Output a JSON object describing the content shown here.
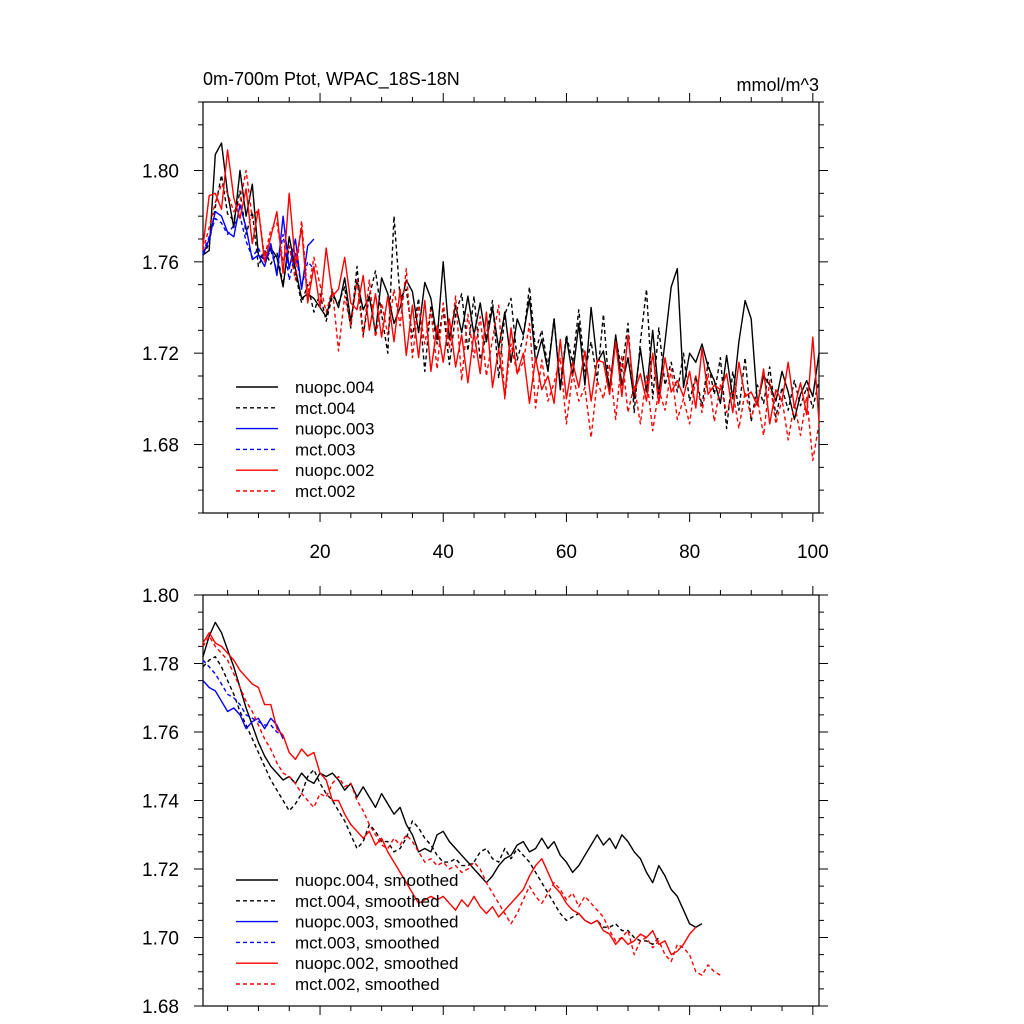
{
  "figure": {
    "title_left": "0m-700m Ptot, WPAC_18S-18N",
    "title_right": "mmol/m^3"
  },
  "chart_data": [
    {
      "type": "line",
      "title": "0m-700m Ptot, WPAC_18S-18N",
      "units": "mmol/m^3",
      "xlim": [
        1,
        101
      ],
      "ylim": [
        1.65,
        1.83
      ],
      "xticks": [
        20,
        40,
        60,
        80,
        100
      ],
      "xtick_labels": [
        "20",
        "40",
        "60",
        "80",
        "100"
      ],
      "yticks": [
        1.68,
        1.72,
        1.76,
        1.8
      ],
      "ytick_labels": [
        "1.68",
        "1.72",
        "1.76",
        "1.80"
      ],
      "legend": [
        "nuopc.004",
        "mct.004",
        "nuopc.003",
        "mct.003",
        "nuopc.002",
        "mct.002"
      ],
      "legend_location": "lower-left",
      "series": [
        {
          "name": "nuopc.004",
          "color": "#000000",
          "dash": "solid",
          "x_start": 1,
          "values": [
            1.763,
            1.765,
            1.807,
            1.812,
            1.79,
            1.775,
            1.8,
            1.78,
            1.794,
            1.763,
            1.761,
            1.766,
            1.762,
            1.749,
            1.771,
            1.757,
            1.744,
            1.746,
            1.744,
            1.74,
            1.736,
            1.747,
            1.74,
            1.753,
            1.734,
            1.752,
            1.739,
            1.745,
            1.729,
            1.753,
            1.746,
            1.733,
            1.74,
            1.752,
            1.747,
            1.729,
            1.751,
            1.744,
            1.726,
            1.76,
            1.726,
            1.741,
            1.729,
            1.745,
            1.728,
            1.742,
            1.725,
            1.74,
            1.722,
            1.738,
            1.716,
            1.735,
            1.728,
            1.744,
            1.716,
            1.726,
            1.712,
            1.735,
            1.704,
            1.727,
            1.71,
            1.733,
            1.706,
            1.74,
            1.716,
            1.721,
            1.704,
            1.728,
            1.706,
            1.718,
            1.7,
            1.722,
            1.703,
            1.73,
            1.702,
            1.725,
            1.749,
            1.757,
            1.705,
            1.72,
            1.716,
            1.724,
            1.714,
            1.708,
            1.698,
            1.719,
            1.7,
            1.725,
            1.743,
            1.735,
            1.698,
            1.71,
            1.706,
            1.699,
            1.712,
            1.703,
            1.691,
            1.702,
            1.708,
            1.701,
            1.72
          ]
        },
        {
          "name": "mct.004",
          "color": "#000000",
          "dash": "dashed",
          "x_start": 1,
          "values": [
            1.763,
            1.768,
            1.784,
            1.798,
            1.781,
            1.778,
            1.791,
            1.772,
            1.782,
            1.758,
            1.765,
            1.759,
            1.764,
            1.75,
            1.767,
            1.755,
            1.742,
            1.75,
            1.738,
            1.746,
            1.734,
            1.745,
            1.742,
            1.749,
            1.731,
            1.758,
            1.728,
            1.745,
            1.756,
            1.737,
            1.72,
            1.78,
            1.744,
            1.748,
            1.727,
            1.744,
            1.712,
            1.741,
            1.724,
            1.739,
            1.715,
            1.737,
            1.746,
            1.721,
            1.745,
            1.717,
            1.728,
            1.743,
            1.709,
            1.737,
            1.744,
            1.717,
            1.727,
            1.749,
            1.721,
            1.73,
            1.714,
            1.735,
            1.706,
            1.728,
            1.716,
            1.739,
            1.712,
            1.725,
            1.708,
            1.737,
            1.702,
            1.727,
            1.712,
            1.733,
            1.694,
            1.725,
            1.748,
            1.7,
            1.731,
            1.706,
            1.716,
            1.703,
            1.72,
            1.699,
            1.71,
            1.697,
            1.716,
            1.702,
            1.718,
            1.687,
            1.712,
            1.695,
            1.718,
            1.69,
            1.706,
            1.698,
            1.714,
            1.692,
            1.705,
            1.695,
            1.708,
            1.697,
            1.705,
            1.696,
            1.708
          ]
        },
        {
          "name": "nuopc.003",
          "color": "#0000ff",
          "dash": "solid",
          "x_start": 1,
          "values": [
            1.763,
            1.77,
            1.782,
            1.78,
            1.773,
            1.771,
            1.785,
            1.775,
            1.761,
            1.763,
            1.758,
            1.768,
            1.754,
            1.78,
            1.757,
            1.77,
            1.748,
            1.767,
            1.77
          ]
        },
        {
          "name": "mct.003",
          "color": "#0000ff",
          "dash": "dashed",
          "x_start": 1,
          "values": [
            1.764,
            1.771,
            1.779,
            1.777,
            1.772,
            1.776,
            1.78,
            1.769,
            1.762,
            1.766,
            1.76,
            1.765,
            1.756,
            1.772,
            1.752,
            1.764,
            1.749,
            1.76,
            1.757
          ]
        },
        {
          "name": "nuopc.002",
          "color": "#ff0000",
          "dash": "solid",
          "x_start": 1,
          "values": [
            1.767,
            1.789,
            1.79,
            1.783,
            1.809,
            1.788,
            1.779,
            1.792,
            1.768,
            1.783,
            1.76,
            1.771,
            1.782,
            1.755,
            1.79,
            1.759,
            1.775,
            1.742,
            1.758,
            1.74,
            1.766,
            1.745,
            1.748,
            1.762,
            1.742,
            1.739,
            1.754,
            1.73,
            1.746,
            1.727,
            1.745,
            1.725,
            1.748,
            1.719,
            1.741,
            1.718,
            1.743,
            1.712,
            1.732,
            1.716,
            1.735,
            1.714,
            1.728,
            1.707,
            1.729,
            1.711,
            1.738,
            1.705,
            1.722,
            1.701,
            1.731,
            1.711,
            1.72,
            1.698,
            1.718,
            1.704,
            1.71,
            1.698,
            1.726,
            1.7,
            1.716,
            1.705,
            1.721,
            1.699,
            1.717,
            1.716,
            1.702,
            1.725,
            1.701,
            1.728,
            1.703,
            1.711,
            1.699,
            1.72,
            1.698,
            1.718,
            1.703,
            1.708,
            1.701,
            1.712,
            1.696,
            1.722,
            1.702,
            1.706,
            1.704,
            1.711,
            1.694,
            1.716,
            1.701,
            1.703,
            1.697,
            1.713,
            1.689,
            1.704,
            1.699,
            1.716,
            1.696,
            1.707,
            1.693,
            1.727,
            1.69
          ]
        },
        {
          "name": "mct.002",
          "color": "#ff0000",
          "dash": "dashed",
          "x_start": 1,
          "values": [
            1.765,
            1.775,
            1.786,
            1.794,
            1.79,
            1.782,
            1.786,
            1.8,
            1.779,
            1.783,
            1.762,
            1.774,
            1.777,
            1.76,
            1.767,
            1.752,
            1.778,
            1.745,
            1.762,
            1.75,
            1.738,
            1.748,
            1.721,
            1.745,
            1.732,
            1.752,
            1.727,
            1.752,
            1.727,
            1.742,
            1.728,
            1.748,
            1.732,
            1.757,
            1.718,
            1.741,
            1.724,
            1.739,
            1.713,
            1.742,
            1.722,
            1.745,
            1.708,
            1.737,
            1.718,
            1.736,
            1.71,
            1.726,
            1.741,
            1.7,
            1.724,
            1.711,
            1.716,
            1.733,
            1.696,
            1.717,
            1.699,
            1.707,
            1.718,
            1.689,
            1.711,
            1.699,
            1.705,
            1.683,
            1.708,
            1.7,
            1.715,
            1.691,
            1.719,
            1.694,
            1.706,
            1.689,
            1.71,
            1.686,
            1.704,
            1.695,
            1.713,
            1.691,
            1.7,
            1.689,
            1.71,
            1.694,
            1.711,
            1.69,
            1.706,
            1.694,
            1.703,
            1.687,
            1.703,
            1.692,
            1.7,
            1.684,
            1.708,
            1.689,
            1.7,
            1.682,
            1.698,
            1.684,
            1.701,
            1.673,
            1.689
          ]
        }
      ]
    },
    {
      "type": "line",
      "title": "",
      "xlim": [
        1,
        101
      ],
      "ylim": [
        1.68,
        1.8
      ],
      "xticks": [
        20,
        40,
        60,
        80,
        100
      ],
      "xtick_labels": [],
      "yticks": [
        1.68,
        1.7,
        1.72,
        1.74,
        1.76,
        1.78,
        1.8
      ],
      "ytick_labels": [
        "1.68",
        "1.70",
        "1.72",
        "1.74",
        "1.76",
        "1.78",
        "1.80"
      ],
      "legend": [
        "nuopc.004, smoothed",
        "mct.004, smoothed",
        "nuopc.003, smoothed",
        "mct.003, smoothed",
        "nuopc.002, smoothed",
        "mct.002, smoothed"
      ],
      "legend_location": "lower-left",
      "series": [
        {
          "name": "nuopc.004, smoothed",
          "color": "#000000",
          "dash": "solid",
          "x_start": 1,
          "values": [
            1.782,
            1.788,
            1.792,
            1.789,
            1.784,
            1.779,
            1.773,
            1.767,
            1.762,
            1.757,
            1.753,
            1.75,
            1.748,
            1.746,
            1.747,
            1.745,
            1.748,
            1.746,
            1.745,
            1.748,
            1.747,
            1.748,
            1.746,
            1.743,
            1.745,
            1.741,
            1.744,
            1.741,
            1.738,
            1.742,
            1.739,
            1.736,
            1.738,
            1.733,
            1.73,
            1.725,
            1.726,
            1.725,
            1.73,
            1.731,
            1.728,
            1.726,
            1.724,
            1.722,
            1.72,
            1.718,
            1.716,
            1.718,
            1.721,
            1.723,
            1.724,
            1.727,
            1.728,
            1.725,
            1.726,
            1.729,
            1.726,
            1.728,
            1.724,
            1.722,
            1.719,
            1.721,
            1.724,
            1.727,
            1.73,
            1.727,
            1.729,
            1.726,
            1.73,
            1.728,
            1.725,
            1.723,
            1.719,
            1.716,
            1.721,
            1.718,
            1.714,
            1.712,
            1.708,
            1.704,
            1.703,
            1.704
          ]
        },
        {
          "name": "mct.004, smoothed",
          "color": "#000000",
          "dash": "dashed",
          "x_start": 1,
          "values": [
            1.779,
            1.781,
            1.782,
            1.779,
            1.775,
            1.771,
            1.766,
            1.762,
            1.758,
            1.754,
            1.75,
            1.746,
            1.743,
            1.74,
            1.737,
            1.739,
            1.742,
            1.747,
            1.749,
            1.745,
            1.742,
            1.74,
            1.737,
            1.734,
            1.73,
            1.726,
            1.728,
            1.733,
            1.731,
            1.728,
            1.728,
            1.725,
            1.726,
            1.729,
            1.734,
            1.732,
            1.729,
            1.727,
            1.724,
            1.722,
            1.722,
            1.723,
            1.721,
            1.721,
            1.722,
            1.725,
            1.726,
            1.723,
            1.722,
            1.726,
            1.723,
            1.726,
            1.724,
            1.722,
            1.719,
            1.716,
            1.713,
            1.71,
            1.707,
            1.705,
            1.706,
            1.707,
            1.705,
            1.704,
            1.705,
            1.703,
            1.703,
            1.704,
            1.702,
            1.702,
            1.7,
            1.699,
            1.699,
            1.698,
            1.7
          ]
        },
        {
          "name": "nuopc.003, smoothed",
          "color": "#0000ff",
          "dash": "solid",
          "x_start": 1,
          "values": [
            1.775,
            1.773,
            1.772,
            1.769,
            1.766,
            1.767,
            1.765,
            1.761,
            1.763,
            1.764,
            1.761,
            1.764,
            1.762,
            1.758
          ]
        },
        {
          "name": "mct.003, smoothed",
          "color": "#0000ff",
          "dash": "dashed",
          "x_start": 1,
          "values": [
            1.781,
            1.779,
            1.777,
            1.774,
            1.771,
            1.77,
            1.768,
            1.765,
            1.764,
            1.763,
            1.762,
            1.762,
            1.76,
            1.759
          ]
        },
        {
          "name": "nuopc.002, smoothed",
          "color": "#ff0000",
          "dash": "solid",
          "x_start": 1,
          "values": [
            1.786,
            1.789,
            1.786,
            1.785,
            1.783,
            1.781,
            1.778,
            1.776,
            1.774,
            1.773,
            1.768,
            1.768,
            1.761,
            1.759,
            1.754,
            1.752,
            1.755,
            1.753,
            1.754,
            1.748,
            1.746,
            1.74,
            1.74,
            1.736,
            1.733,
            1.731,
            1.729,
            1.731,
            1.727,
            1.729,
            1.725,
            1.722,
            1.719,
            1.716,
            1.713,
            1.71,
            1.711,
            1.712,
            1.711,
            1.712,
            1.71,
            1.708,
            1.711,
            1.709,
            1.712,
            1.709,
            1.707,
            1.709,
            1.706,
            1.708,
            1.71,
            1.712,
            1.714,
            1.718,
            1.721,
            1.723,
            1.719,
            1.715,
            1.713,
            1.71,
            1.708,
            1.707,
            1.705,
            1.704,
            1.705,
            1.702,
            1.701,
            1.698,
            1.7,
            1.698,
            1.699,
            1.701,
            1.7,
            1.702,
            1.698,
            1.699,
            1.695,
            1.696,
            1.698,
            1.701,
            1.703
          ]
        },
        {
          "name": "mct.002, smoothed",
          "color": "#ff0000",
          "dash": "dashed",
          "x_start": 1,
          "values": [
            1.785,
            1.788,
            1.785,
            1.783,
            1.781,
            1.777,
            1.773,
            1.769,
            1.766,
            1.762,
            1.758,
            1.755,
            1.751,
            1.748,
            1.747,
            1.745,
            1.742,
            1.74,
            1.738,
            1.742,
            1.741,
            1.745,
            1.747,
            1.744,
            1.745,
            1.74,
            1.737,
            1.733,
            1.73,
            1.727,
            1.726,
            1.729,
            1.727,
            1.73,
            1.728,
            1.725,
            1.722,
            1.723,
            1.721,
            1.722,
            1.72,
            1.721,
            1.719,
            1.72,
            1.722,
            1.72,
            1.716,
            1.713,
            1.71,
            1.707,
            1.704,
            1.707,
            1.711,
            1.715,
            1.712,
            1.71,
            1.713,
            1.716,
            1.714,
            1.711,
            1.713,
            1.709,
            1.712,
            1.71,
            1.708,
            1.706,
            1.702,
            1.699,
            1.7,
            1.702,
            1.695,
            1.699,
            1.7,
            1.697,
            1.699,
            1.695,
            1.693,
            1.698,
            1.697,
            1.695,
            1.69,
            1.689,
            1.692,
            1.69,
            1.689
          ]
        }
      ]
    }
  ]
}
